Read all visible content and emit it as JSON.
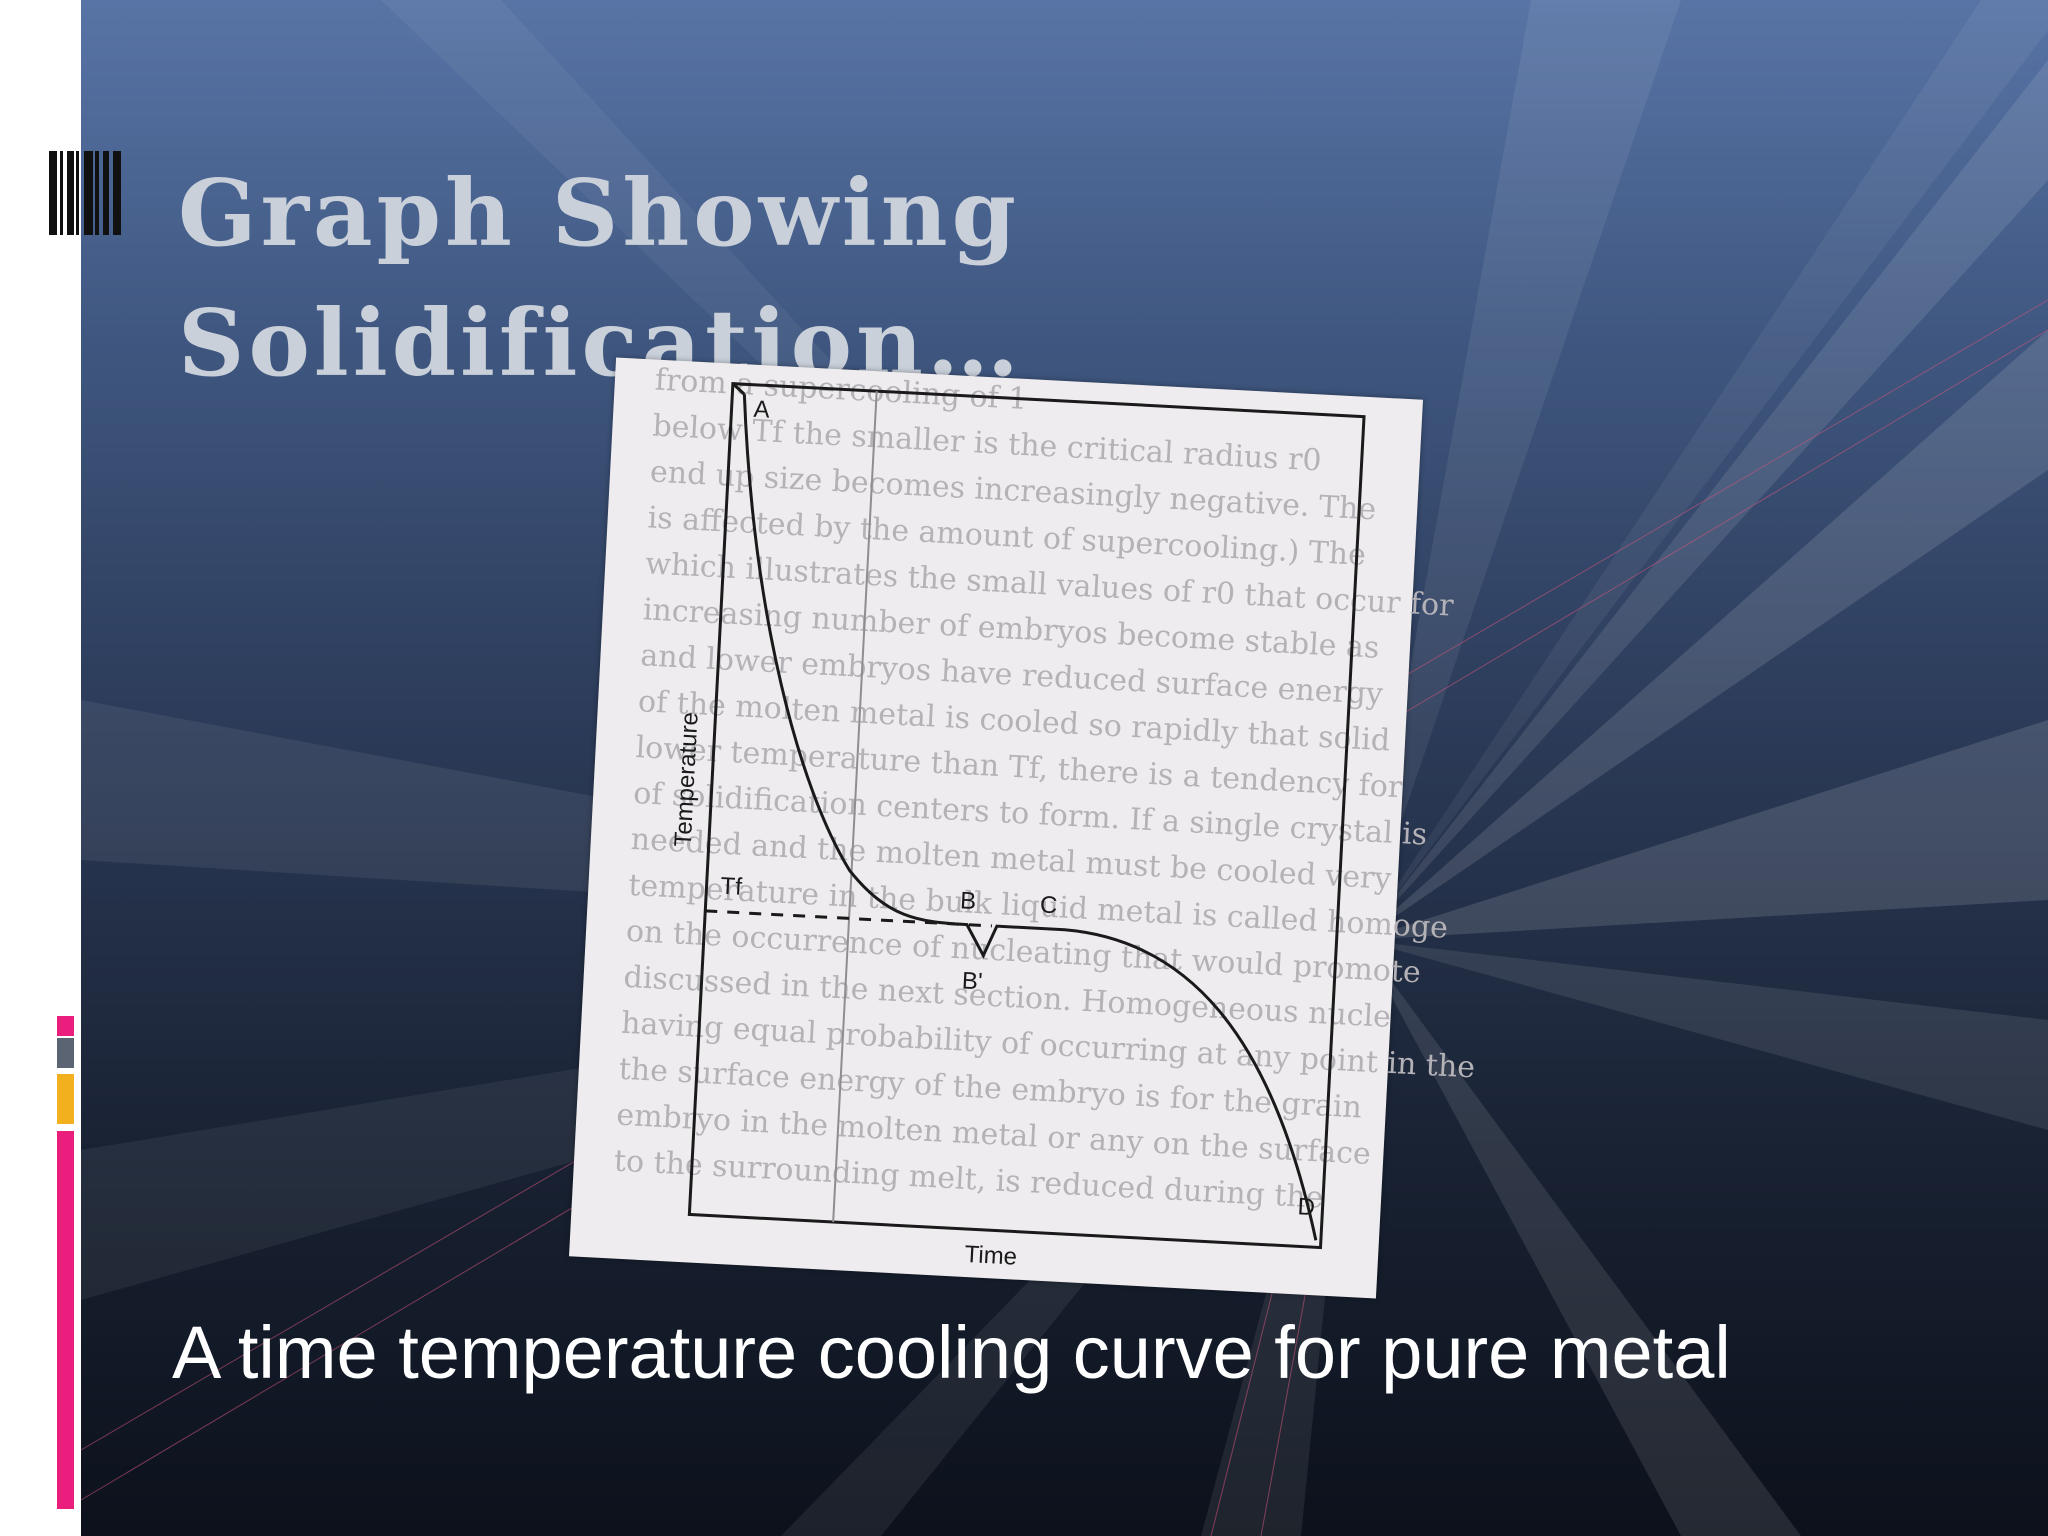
{
  "slide": {
    "title": "Graph Showing Solidification…",
    "caption": "A time temperature cooling curve for pure metal"
  },
  "figure": {
    "y_axis_label": "Temperature",
    "x_axis_label": "Time",
    "freezing_temp_label": "Tf",
    "point_labels": {
      "a": "A",
      "b": "B",
      "b_prime": "B'",
      "c": "C",
      "d": "D"
    },
    "background_text": [
      "from a supercooling of 1",
      "below Tf the smaller is the critical radius r0",
      "end up size becomes increasingly negative. The",
      "is affected by the amount of supercooling.) The",
      "which illustrates the small values of r0 that occur for",
      "increasing number of embryos become stable as",
      "and lower embryos have reduced surface energy",
      "of the molten metal is cooled so rapidly that solid",
      "lower temperature than Tf, there is a tendency for",
      "of solidification centers to form. If a single crystal is",
      "needed and the molten metal must be cooled very",
      "temperature in the bulk liquid metal is called homoge",
      "on the occurrence of nucleating that would promote",
      "discussed in the next section. Homogeneous nucle",
      "having equal probability of occurring at any point in the",
      "the surface energy of the embryo is for the grain",
      "embryo in the molten metal or any on the surface",
      "to the surrounding melt, is reduced during the"
    ],
    "colors": {
      "paper": "#eeecee",
      "ink": "#1a1a1a",
      "ghost_text": "#b4b2b6"
    }
  },
  "decor": {
    "accent_colors": [
      "#e91e7d",
      "#5b6473",
      "#f2b01e",
      "#e91e7d"
    ]
  }
}
